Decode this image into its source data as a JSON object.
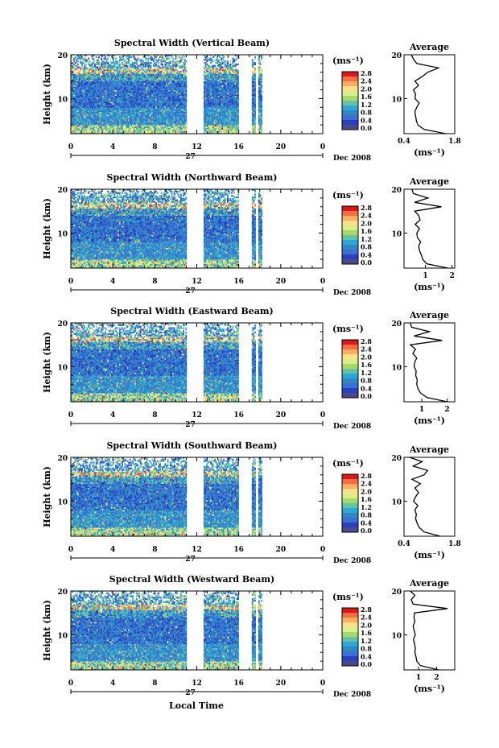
{
  "colorbar": {
    "unit": "(ms⁻¹)",
    "ticks": [
      "2.8",
      "2.4",
      "2.0",
      "1.6",
      "1.2",
      "0.8",
      "0.4",
      "0.0"
    ],
    "colors": [
      "#d7191c",
      "#f46d43",
      "#fdae61",
      "#fee08b",
      "#d9ef8b",
      "#a6d96a",
      "#66c2a5",
      "#2ca6d8",
      "#3288bd",
      "#3a6fd8",
      "#2b3fbf",
      "#4a4a8a"
    ]
  },
  "shared": {
    "y_axis_label": "Height (km)",
    "x_axis_label": "Local Time",
    "date_day": "27",
    "date_label": "Dec 2008",
    "avg_title": "Average",
    "avg_unit": "(ms⁻¹)"
  },
  "chart_data": [
    {
      "type": "heatmap",
      "title": "Spectral Width (Vertical Beam)",
      "xlim": [
        0,
        24
      ],
      "ylim": [
        2,
        20
      ],
      "xticks": [
        "0",
        "4",
        "8",
        "12",
        "16",
        "20",
        "0"
      ],
      "yticks": [
        "20",
        "10"
      ],
      "gaps": [
        [
          11,
          12.7
        ],
        [
          16,
          17.2
        ],
        [
          17.6,
          17.9
        ],
        [
          18.2,
          18.6
        ]
      ],
      "data_end": 18.6,
      "seed": 11,
      "profile": {
        "xlim": [
          0.4,
          1.8
        ],
        "xtick_labels": [
          "0.4",
          "1.8"
        ],
        "xtick_values": [
          0.4,
          1.8
        ],
        "heights": [
          2,
          3,
          4,
          5,
          6,
          7,
          8,
          9,
          10,
          11,
          12,
          13,
          14,
          15,
          16,
          17,
          18,
          19,
          20
        ],
        "values": [
          1.55,
          0.95,
          0.78,
          0.74,
          0.72,
          0.7,
          0.75,
          0.82,
          0.7,
          0.72,
          0.66,
          0.8,
          0.7,
          0.9,
          1.05,
          1.35,
          0.75,
          0.66,
          0.6
        ]
      }
    },
    {
      "type": "heatmap",
      "title": "Spectral Width (Northward Beam)",
      "xlim": [
        0,
        24
      ],
      "ylim": [
        2,
        20
      ],
      "xticks": [
        "0",
        "4",
        "8",
        "12",
        "16",
        "20",
        "0"
      ],
      "yticks": [
        "20",
        "10"
      ],
      "gaps": [
        [
          11,
          12.7
        ],
        [
          16,
          17.2
        ],
        [
          17.6,
          17.9
        ],
        [
          18.2,
          18.6
        ]
      ],
      "data_end": 18.6,
      "seed": 23,
      "profile": {
        "xlim": [
          0.2,
          2.1
        ],
        "xtick_labels": [
          "1",
          "2"
        ],
        "xtick_values": [
          1,
          2
        ],
        "heights": [
          2,
          3,
          4,
          5,
          6,
          7,
          8,
          9,
          10,
          11,
          12,
          13,
          14,
          15,
          16,
          17,
          18,
          19,
          20
        ],
        "values": [
          1.85,
          1.05,
          0.9,
          0.85,
          0.78,
          0.75,
          0.82,
          0.7,
          0.68,
          0.78,
          0.62,
          0.8,
          0.75,
          0.6,
          1.6,
          0.6,
          1.1,
          0.55,
          0.5
        ]
      }
    },
    {
      "type": "heatmap",
      "title": "Spectral Width (Eastward Beam)",
      "xlim": [
        0,
        24
      ],
      "ylim": [
        2,
        20
      ],
      "xticks": [
        "0",
        "4",
        "8",
        "12",
        "16",
        "20",
        "0"
      ],
      "yticks": [
        "20",
        "10"
      ],
      "gaps": [
        [
          11,
          12.7
        ],
        [
          16,
          17.2
        ],
        [
          17.6,
          17.9
        ],
        [
          18.2,
          18.6
        ]
      ],
      "data_end": 18.6,
      "seed": 37,
      "profile": {
        "xlim": [
          0.3,
          2.3
        ],
        "xtick_labels": [
          "1",
          "2"
        ],
        "xtick_values": [
          1,
          2
        ],
        "heights": [
          2,
          3,
          4,
          5,
          6,
          7,
          8,
          9,
          10,
          11,
          12,
          13,
          14,
          15,
          16,
          17,
          18,
          19,
          20
        ],
        "values": [
          2.0,
          1.2,
          0.95,
          0.85,
          0.8,
          0.82,
          0.76,
          0.78,
          0.7,
          0.72,
          0.8,
          0.65,
          0.75,
          0.55,
          1.8,
          0.7,
          1.3,
          0.6,
          0.55
        ]
      }
    },
    {
      "type": "heatmap",
      "title": "Spectral Width (Southward Beam)",
      "xlim": [
        0,
        24
      ],
      "ylim": [
        2,
        20
      ],
      "xticks": [
        "0",
        "4",
        "8",
        "12",
        "16",
        "20",
        "0"
      ],
      "yticks": [
        "20",
        "10"
      ],
      "gaps": [
        [
          11,
          12.7
        ],
        [
          16,
          17.2
        ],
        [
          17.6,
          17.9
        ],
        [
          18.2,
          18.6
        ]
      ],
      "data_end": 18.6,
      "seed": 51,
      "profile": {
        "xlim": [
          0.4,
          1.8
        ],
        "xtick_labels": [
          "0.4",
          "1.8"
        ],
        "xtick_values": [
          0.4,
          1.8
        ],
        "heights": [
          2,
          3,
          4,
          5,
          6,
          7,
          8,
          9,
          10,
          11,
          12,
          13,
          14,
          15,
          16,
          17,
          18,
          19,
          20
        ],
        "values": [
          1.4,
          0.95,
          0.82,
          0.76,
          0.72,
          0.74,
          0.7,
          0.78,
          0.66,
          0.72,
          0.8,
          0.7,
          0.85,
          0.62,
          0.95,
          1.05,
          0.65,
          0.9,
          0.55
        ]
      }
    },
    {
      "type": "heatmap",
      "title": "Spectral Width (Westward Beam)",
      "xlim": [
        0,
        24
      ],
      "ylim": [
        2,
        20
      ],
      "xticks": [
        "0",
        "4",
        "8",
        "12",
        "16",
        "20",
        "0"
      ],
      "yticks": [
        "20",
        "10"
      ],
      "gaps": [
        [
          11,
          12.7
        ],
        [
          16,
          17.2
        ],
        [
          17.6,
          17.9
        ],
        [
          18.2,
          18.6
        ]
      ],
      "data_end": 18.6,
      "seed": 67,
      "profile": {
        "xlim": [
          0.2,
          3.0
        ],
        "xtick_labels": [
          "1",
          "2"
        ],
        "xtick_values": [
          1,
          2
        ],
        "heights": [
          2,
          3,
          4,
          5,
          6,
          7,
          8,
          9,
          10,
          11,
          12,
          13,
          14,
          15,
          16,
          17,
          18,
          19,
          20
        ],
        "values": [
          2.1,
          1.1,
          0.9,
          0.86,
          0.8,
          0.82,
          0.78,
          0.72,
          0.82,
          0.76,
          0.7,
          0.8,
          0.75,
          0.78,
          2.6,
          0.7,
          0.6,
          0.8,
          0.55
        ]
      }
    }
  ]
}
